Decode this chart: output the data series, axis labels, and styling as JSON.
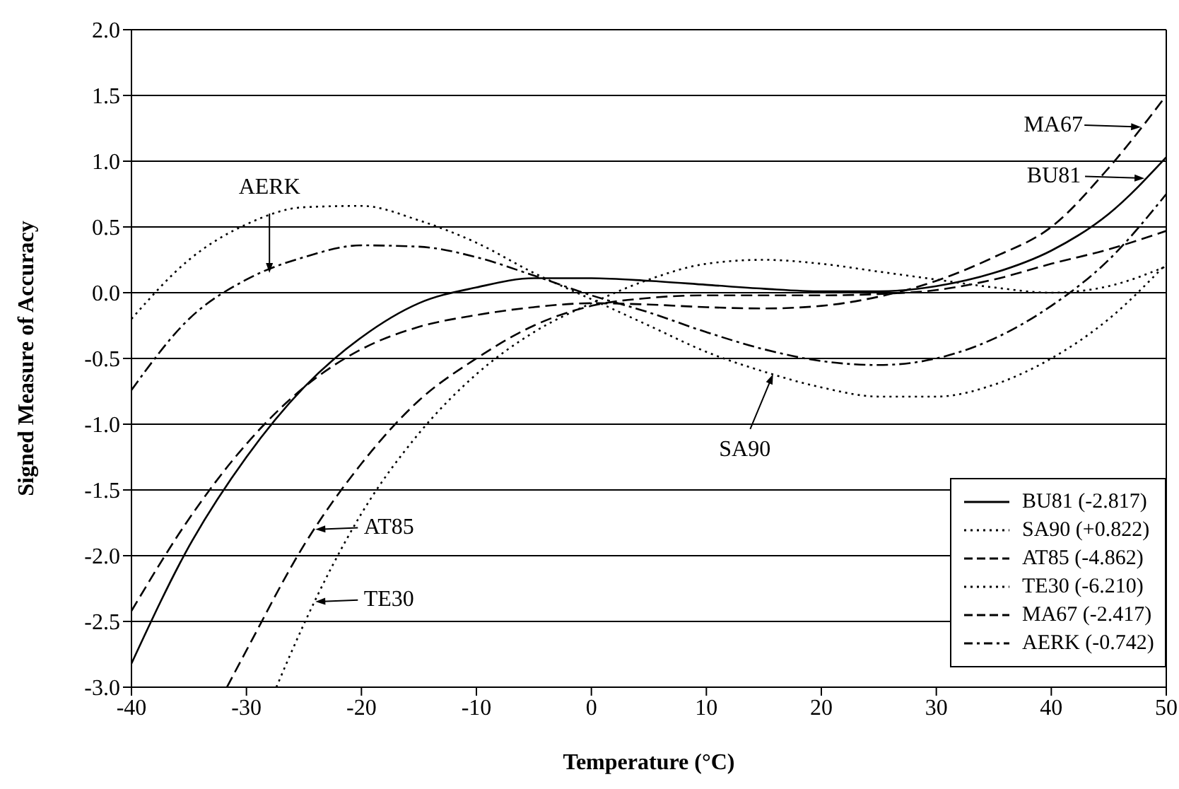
{
  "chart_data": {
    "type": "line",
    "xlabel": "Temperature (°C)",
    "ylabel": "Signed Measure of Accuracy",
    "xlim": [
      -40,
      50
    ],
    "xticks": [
      -40,
      -30,
      -20,
      -10,
      0,
      10,
      20,
      30,
      40,
      50
    ],
    "ylim": [
      -3,
      2
    ],
    "yticks": [
      {
        "value": -3,
        "label": "-3.0"
      },
      {
        "value": -2.5,
        "label": "-2.5"
      },
      {
        "value": -2,
        "label": "-2.0"
      },
      {
        "value": -1.5,
        "label": "-1.5"
      },
      {
        "value": -1,
        "label": "-1.0"
      },
      {
        "value": -0.5,
        "label": "-0.5"
      },
      {
        "value": 0,
        "label": "0.0"
      },
      {
        "value": 0.5,
        "label": "0.5"
      },
      {
        "value": 1,
        "label": "1.0"
      },
      {
        "value": 1.5,
        "label": "1.5"
      },
      {
        "value": 2,
        "label": "2.0"
      }
    ],
    "grid": "y",
    "legend": "bottom right",
    "marker": "none",
    "x": [
      -40,
      -35,
      -30,
      -25,
      -20,
      -15,
      -10,
      -5,
      0,
      5,
      10,
      15,
      20,
      25,
      30,
      35,
      40,
      45,
      50
    ],
    "series": [
      {
        "name": "BU81 (-2.817)",
        "color": "#000000",
        "line_style": "solid",
        "values": [
          -2.82,
          -1.93,
          -1.25,
          -0.72,
          -0.34,
          -0.08,
          0.04,
          0.11,
          0.11,
          0.09,
          0.06,
          0.03,
          0.01,
          0.01,
          0.05,
          0.15,
          0.32,
          0.6,
          1.03
        ]
      },
      {
        "name": "SA90 (+0.822)",
        "color": "#000000",
        "line_style": "dotted",
        "values": [
          -0.2,
          0.25,
          0.52,
          0.65,
          0.66,
          0.55,
          0.38,
          0.15,
          -0.05,
          -0.25,
          -0.45,
          -0.6,
          -0.72,
          -0.79,
          -0.79,
          -0.7,
          -0.5,
          -0.2,
          0.22
        ]
      },
      {
        "name": "AT85 (-4.862)",
        "color": "#000000",
        "line_style": "dashed",
        "x": [
          -31.7,
          -30,
          -25,
          -20,
          -15,
          -10,
          -5,
          0,
          5,
          10,
          15,
          20,
          25,
          30,
          35,
          40,
          45,
          50
        ],
        "values": [
          -3.0,
          -2.72,
          -1.92,
          -1.3,
          -0.82,
          -0.5,
          -0.25,
          -0.1,
          -0.04,
          -0.02,
          -0.02,
          -0.02,
          -0.01,
          0.02,
          0.1,
          0.22,
          0.33,
          0.47
        ]
      },
      {
        "name": "TE30 (-6.210)",
        "color": "#000000",
        "line_style": "dotted",
        "x": [
          -27.4,
          -25,
          -20,
          -15,
          -10,
          -5,
          0,
          5,
          10,
          15,
          20,
          25,
          30,
          35,
          40,
          45,
          50
        ],
        "values": [
          -3.0,
          -2.52,
          -1.68,
          -1.07,
          -0.62,
          -0.3,
          -0.08,
          0.1,
          0.22,
          0.25,
          0.22,
          0.16,
          0.1,
          0.04,
          0.0,
          0.05,
          0.2
        ]
      },
      {
        "name": "MA67 (-2.417)",
        "color": "#000000",
        "line_style": "dashed",
        "values": [
          -2.42,
          -1.72,
          -1.15,
          -0.72,
          -0.43,
          -0.26,
          -0.17,
          -0.11,
          -0.08,
          -0.09,
          -0.11,
          -0.12,
          -0.1,
          -0.03,
          0.09,
          0.27,
          0.5,
          0.95,
          1.5
        ]
      },
      {
        "name": "AERK (-0.742)",
        "color": "#000000",
        "line_style": "dashdot",
        "values": [
          -0.74,
          -0.2,
          0.1,
          0.27,
          0.36,
          0.35,
          0.27,
          0.13,
          -0.02,
          -0.15,
          -0.3,
          -0.43,
          -0.52,
          -0.55,
          -0.5,
          -0.35,
          -0.1,
          0.25,
          0.75
        ]
      }
    ],
    "annotations": [
      {
        "text": "AERK",
        "x": -28,
        "y": 0.15
      },
      {
        "text": "MA67",
        "x": 47.8,
        "y": 1.26
      },
      {
        "text": "BU81",
        "x": 48.1,
        "y": 0.87
      },
      {
        "text": "SA90",
        "x": 15.8,
        "y": -0.62
      },
      {
        "text": "AT85",
        "x": -24,
        "y": -1.8
      },
      {
        "text": "TE30",
        "x": -24,
        "y": -2.35
      }
    ]
  }
}
